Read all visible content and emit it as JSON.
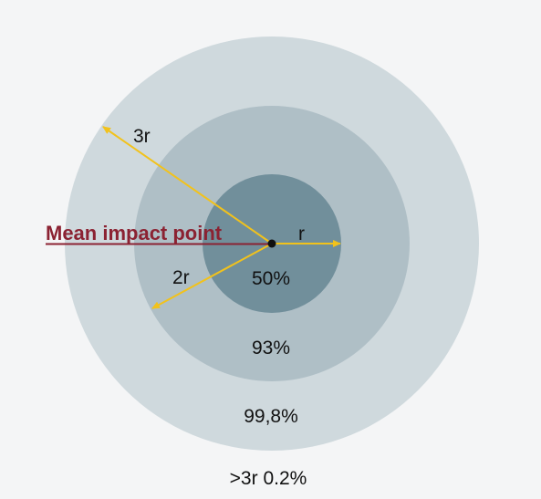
{
  "colors": {
    "background": "#f4f5f6",
    "outer_ring": "#cfd9dd",
    "middle_ring": "#afbfc6",
    "inner_ring": "#718f9b",
    "arrow": "#f2c21b",
    "center_point": "#111111",
    "mean_impact_label": "#8b2232"
  },
  "labels": {
    "mean_impact_point": "Mean impact point",
    "radius_1": "r",
    "radius_2": "2r",
    "radius_3": "3r"
  },
  "rings": {
    "inner": "50%",
    "middle": "93%",
    "outer": "99,8%",
    "beyond": ">3r 0.2%"
  }
}
